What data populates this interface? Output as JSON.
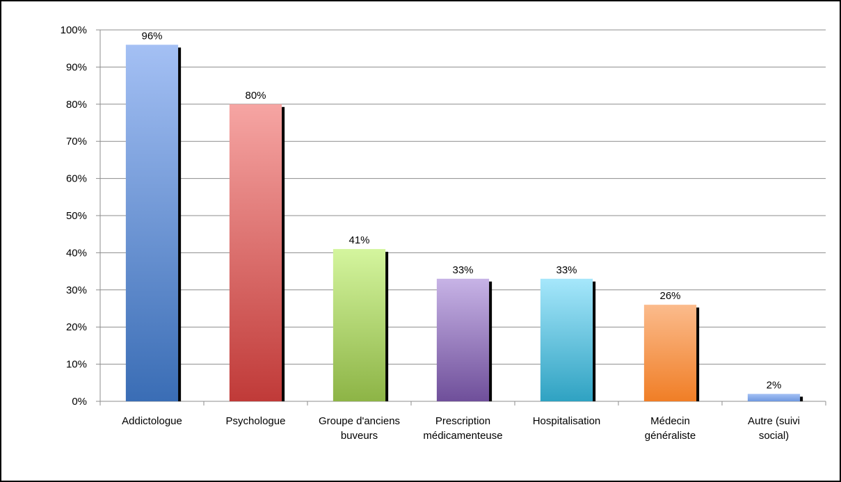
{
  "chart_data": {
    "type": "bar",
    "categories": [
      [
        "Addictologue"
      ],
      [
        "Psychologue"
      ],
      [
        "Groupe d'anciens",
        "buveurs"
      ],
      [
        "Prescription",
        "médicamenteuse"
      ],
      [
        "Hospitalisation"
      ],
      [
        "Médecin",
        "généraliste"
      ],
      [
        "Autre (suivi",
        "social)"
      ]
    ],
    "values": [
      96,
      80,
      41,
      33,
      33,
      26,
      2
    ],
    "data_labels": [
      "96%",
      "80%",
      "41%",
      "33%",
      "33%",
      "26%",
      "2%"
    ],
    "ylim": [
      0,
      100
    ],
    "y_ticks": [
      "0%",
      "10%",
      "20%",
      "30%",
      "40%",
      "50%",
      "60%",
      "70%",
      "80%",
      "90%",
      "100%"
    ],
    "grid": true,
    "legend": "none",
    "bar_colors": [
      [
        "#a4c0f4",
        "#3a6db5"
      ],
      [
        "#f6a5a3",
        "#c03a38"
      ],
      [
        "#d4f59e",
        "#8db446"
      ],
      [
        "#c7b3e6",
        "#6f4f9a"
      ],
      [
        "#a6e7fb",
        "#2fa2c2"
      ],
      [
        "#fbbb8c",
        "#f07e26"
      ],
      [
        "#a4c0f4",
        "#6f98df"
      ]
    ],
    "shadow_color": "#000000",
    "gridline_color": "#8c8c8c"
  }
}
